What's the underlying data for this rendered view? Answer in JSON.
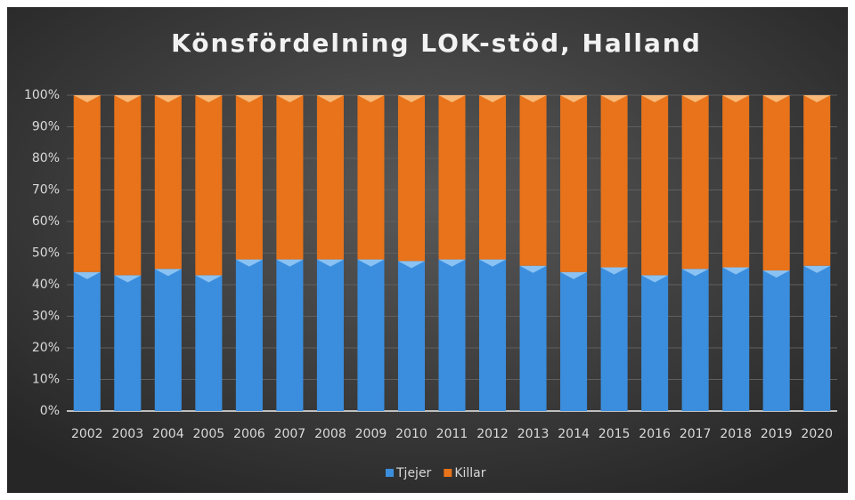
{
  "chart_data": {
    "type": "stacked_bar",
    "title": "Könsfördelning LOK-stöd, Halland",
    "categories": [
      "2002",
      "2003",
      "2004",
      "2005",
      "2006",
      "2007",
      "2008",
      "2009",
      "2010",
      "2011",
      "2012",
      "2013",
      "2014",
      "2015",
      "2016",
      "2017",
      "2018",
      "2019",
      "2020"
    ],
    "series": [
      {
        "name": "Tjejer",
        "color": "#3b8ede",
        "values": [
          44,
          43,
          45,
          43,
          48,
          48,
          48,
          48,
          47.5,
          48,
          48,
          46,
          44,
          45.5,
          43,
          45,
          45.5,
          44.5,
          46
        ]
      },
      {
        "name": "Killar",
        "color": "#e8731a",
        "values": [
          56,
          57,
          55,
          57,
          52,
          52,
          52,
          52,
          52.5,
          52,
          52,
          54,
          56,
          54.5,
          57,
          55,
          54.5,
          55.5,
          54
        ]
      }
    ],
    "ylim": [
      0,
      100
    ],
    "yticks": [
      {
        "value": 0,
        "label": "0%"
      },
      {
        "value": 10,
        "label": "10%"
      },
      {
        "value": 20,
        "label": "20%"
      },
      {
        "value": 30,
        "label": "30%"
      },
      {
        "value": 40,
        "label": "40%"
      },
      {
        "value": 50,
        "label": "50%"
      },
      {
        "value": 60,
        "label": "60%"
      },
      {
        "value": 70,
        "label": "70%"
      },
      {
        "value": 80,
        "label": "80%"
      },
      {
        "value": 90,
        "label": "90%"
      },
      {
        "value": 100,
        "label": "100%"
      }
    ],
    "grid": true,
    "legend": "bottom"
  }
}
